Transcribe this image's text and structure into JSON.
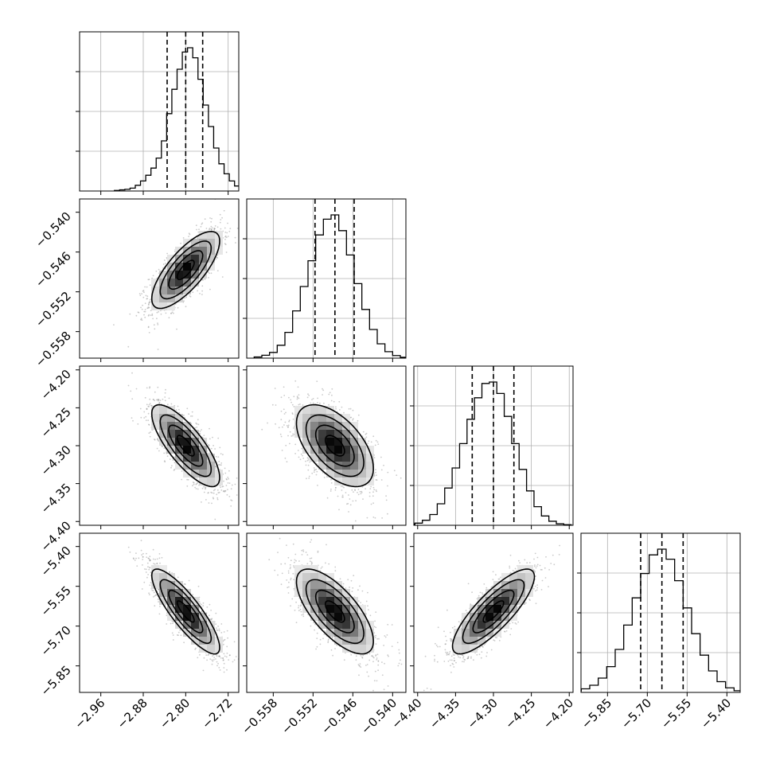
{
  "chart_data": {
    "type": "corner",
    "title": "",
    "grid": true,
    "colors": {
      "axes": "#000000",
      "grid": "#b0b0b0",
      "points": "#8c8c8c",
      "density_dark": "#000000",
      "density_light": "#ffffff"
    },
    "parameters": [
      {
        "range": [
          -3.0,
          -2.7
        ],
        "ticks": [
          -2.96,
          -2.88,
          -2.8,
          -2.72
        ],
        "tick_labels": [
          "−2.96",
          "−2.88",
          "−2.80",
          "−2.72"
        ],
        "quantiles": [
          -2.835,
          -2.8,
          -2.768
        ],
        "mean": -2.8,
        "sd": 0.032,
        "hist_bins": 26,
        "hist_counts": [
          0.004,
          0.008,
          0.012,
          0.02,
          0.04,
          0.07,
          0.11,
          0.16,
          0.23,
          0.35,
          0.54,
          0.71,
          0.85,
          0.97,
          1.0,
          0.93,
          0.78,
          0.6,
          0.45,
          0.3,
          0.19,
          0.12,
          0.07,
          0.035,
          0.015,
          0.006
        ]
      },
      {
        "range": [
          -0.562,
          -0.538
        ],
        "ticks": [
          -0.558,
          -0.552,
          -0.546,
          -0.54
        ],
        "tick_labels": [
          "−0.558",
          "−0.552",
          "−0.546",
          "−0.540"
        ],
        "quantiles": [
          -0.5517,
          -0.5487,
          -0.5458
        ],
        "mean": -0.5487,
        "sd": 0.0029,
        "hist_bins": 20,
        "hist_counts": [
          0.008,
          0.02,
          0.04,
          0.09,
          0.18,
          0.33,
          0.5,
          0.68,
          0.86,
          0.97,
          1.0,
          0.89,
          0.72,
          0.52,
          0.34,
          0.2,
          0.1,
          0.045,
          0.018,
          0.006
        ]
      },
      {
        "range": [
          -4.405,
          -4.195
        ],
        "ticks": [
          -4.4,
          -4.35,
          -4.3,
          -4.25,
          -4.2
        ],
        "tick_labels": [
          "−4.40",
          "−4.35",
          "−4.30",
          "−4.25",
          "−4.20"
        ],
        "quantiles": [
          -4.328,
          -4.3,
          -4.273
        ],
        "mean": -4.3,
        "sd": 0.027,
        "hist_bins": 22,
        "hist_counts": [
          0.006,
          0.015,
          0.035,
          0.075,
          0.15,
          0.26,
          0.4,
          0.57,
          0.74,
          0.89,
          0.99,
          1.0,
          0.92,
          0.76,
          0.57,
          0.39,
          0.24,
          0.13,
          0.065,
          0.028,
          0.01,
          0.004
        ]
      },
      {
        "range": [
          -5.95,
          -5.35
        ],
        "ticks": [
          -5.85,
          -5.7,
          -5.55,
          -5.4
        ],
        "tick_labels": [
          "−5.85",
          "−5.70",
          "−5.55",
          "−5.40"
        ],
        "quantiles": [
          -5.725,
          -5.645,
          -5.565
        ],
        "mean": -5.645,
        "sd": 0.08,
        "hist_bins": 20,
        "hist_counts": [
          0.01,
          0.025,
          0.05,
          0.1,
          0.18,
          0.3,
          0.47,
          0.66,
          0.83,
          0.96,
          1.0,
          0.93,
          0.78,
          0.59,
          0.41,
          0.26,
          0.15,
          0.075,
          0.032,
          0.012
        ]
      }
    ],
    "correlations": [
      [
        1.0,
        0.75,
        -0.78,
        -0.85
      ],
      [
        0.75,
        1.0,
        -0.55,
        -0.7
      ],
      [
        -0.78,
        -0.55,
        1.0,
        0.82
      ],
      [
        -0.85,
        -0.7,
        0.82,
        1.0
      ]
    ],
    "scatter_points_per_panel": 1500,
    "density_levels_sigma": [
      0.5,
      1.0,
      1.5,
      2.0
    ]
  }
}
